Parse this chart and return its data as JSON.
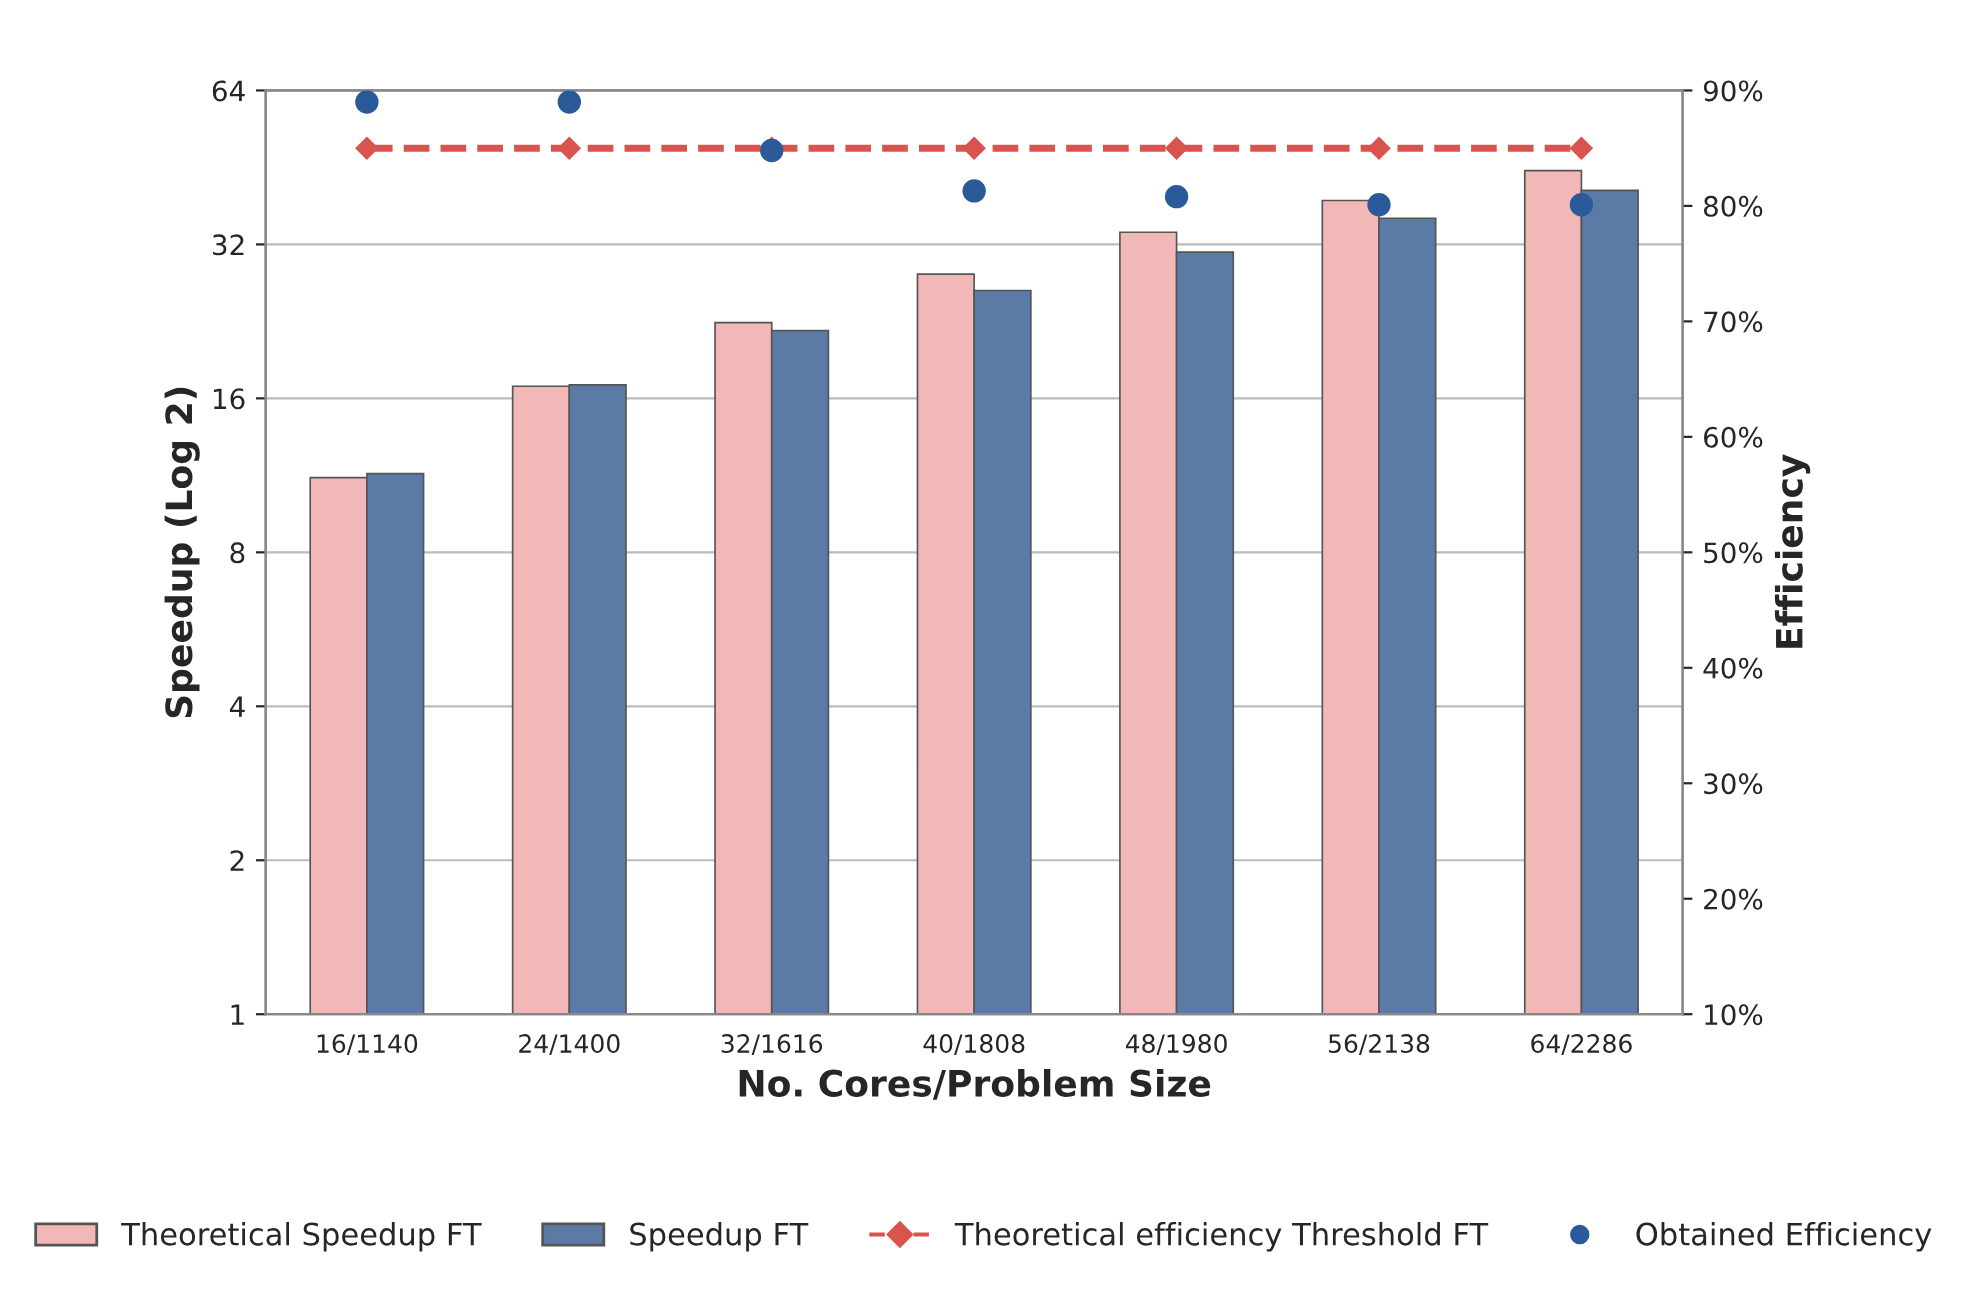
{
  "chart_data": {
    "type": "bar",
    "xlabel": "No. Cores/Problem Size",
    "ylabel": "Speedup (Log 2)",
    "y2label": "Efficiency",
    "categories": [
      "16/1140",
      "24/1400",
      "32/1616",
      "40/1808",
      "48/1980",
      "56/2138",
      "64/2286"
    ],
    "series": [
      {
        "name": "Theoretical Speedup FT",
        "color": "#f2b8b8",
        "values": [
          11.2,
          16.9,
          22.5,
          28,
          33.8,
          39,
          44.6
        ]
      },
      {
        "name": "Speedup FT",
        "color": "#5b7ba6",
        "values": [
          11.4,
          17.0,
          21.7,
          26,
          30.9,
          36,
          40.8
        ]
      },
      {
        "name": "Theoretical efficiency Threshold FT",
        "type": "line",
        "axis": "y2",
        "color": "#d9534f",
        "marker": "diamond",
        "line_style": "dashed",
        "values": [
          85,
          85,
          85,
          85,
          85,
          85,
          85
        ]
      },
      {
        "name": "Obtained Efficiency",
        "type": "scatter",
        "axis": "y2",
        "color": "#2a5a9a",
        "marker": "circle",
        "values": [
          89,
          89,
          84.8,
          81.3,
          80.8,
          80.1,
          80.1
        ]
      }
    ],
    "log": "y",
    "ylim": [
      1,
      64
    ],
    "yticks": [
      1,
      2,
      4,
      8,
      16,
      32,
      64
    ],
    "y2lim": [
      10,
      90
    ],
    "y2ticks": [
      {
        "value": 10,
        "label": "10%"
      },
      {
        "value": 20,
        "label": "20%"
      },
      {
        "value": 30,
        "label": "30%"
      },
      {
        "value": 40,
        "label": "40%"
      },
      {
        "value": 50,
        "label": "50%"
      },
      {
        "value": 60,
        "label": "60%"
      },
      {
        "value": 70,
        "label": "70%"
      },
      {
        "value": 80,
        "label": "80%"
      },
      {
        "value": 90,
        "label": "90%"
      }
    ],
    "grid": "y",
    "legend": "bottom"
  }
}
